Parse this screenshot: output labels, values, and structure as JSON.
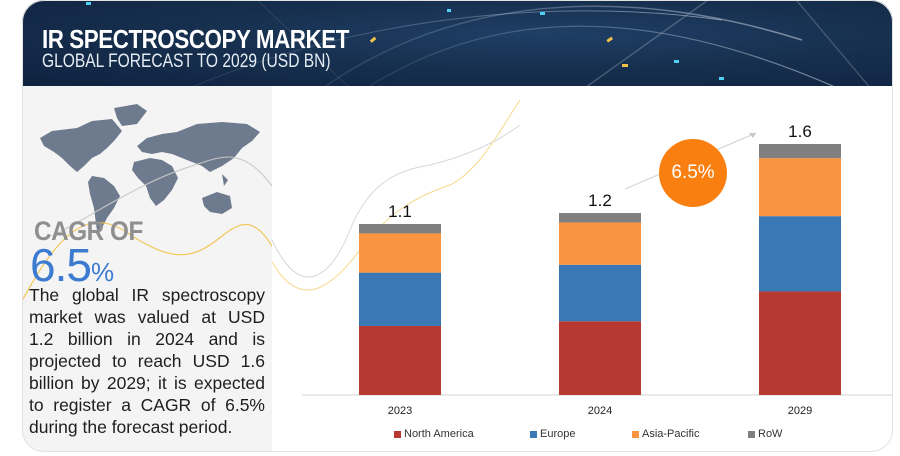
{
  "header": {
    "title": "IR SPECTROSCOPY MARKET",
    "subtitle": "GLOBAL FORECAST TO 2029 (USD BN)"
  },
  "left_panel": {
    "cagr_label": "CAGR OF",
    "cagr_number": "6.5",
    "cagr_percent_sign": "%",
    "description": "The global IR spectroscopy market was valued at USD 1.2 billion in 2024 and is projected to reach USD 1.6 billion by 2029; it is expected to register a CAGR of 6.5% during the forecast period."
  },
  "cagr_bubble": "6.5%",
  "colors": {
    "header_bg": "#17304f",
    "north_america": "#b73a32",
    "europe": "#3a77b5",
    "asia_pacific": "#f99541",
    "row": "#7f7f7f",
    "cagr_accent": "#3c7bd0",
    "bubble": "#f98010"
  },
  "chart_data": {
    "type": "bar",
    "stacked": true,
    "title": "IR Spectroscopy Market, Global Forecast to 2029 (USD BN)",
    "xlabel": "",
    "ylabel": "USD BN",
    "ylim": [
      0,
      1.6
    ],
    "grid": false,
    "legend_position": "bottom",
    "categories": [
      "2023",
      "2024",
      "2029"
    ],
    "totals": [
      "1.1",
      "1.2",
      "1.6"
    ],
    "series": [
      {
        "name": "North America",
        "color": "#b73a32",
        "values": [
          0.44,
          0.47,
          0.66
        ]
      },
      {
        "name": "Europe",
        "color": "#3a77b5",
        "values": [
          0.34,
          0.36,
          0.48
        ]
      },
      {
        "name": "Asia-Pacific",
        "color": "#f99541",
        "values": [
          0.25,
          0.27,
          0.37
        ]
      },
      {
        "name": "RoW",
        "color": "#7f7f7f",
        "values": [
          0.06,
          0.06,
          0.09
        ]
      }
    ],
    "annotations": [
      {
        "text": "6.5%",
        "meaning": "CAGR 2024-2029"
      }
    ]
  }
}
